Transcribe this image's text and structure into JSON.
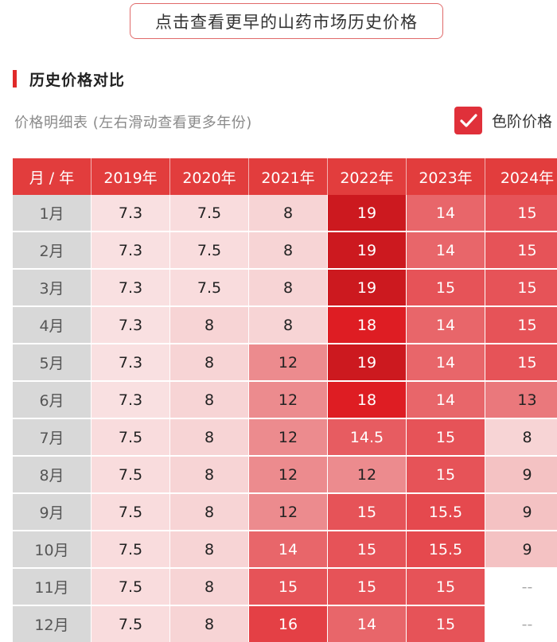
{
  "top_button": {
    "label": "点击查看更早的山药市场历史价格"
  },
  "section": {
    "title": "历史价格对比"
  },
  "table_hint": "价格明细表 (左右滑动查看更多年份)",
  "color_toggle": {
    "label": "色阶价格",
    "checked": true
  },
  "colors": {
    "accent": "#e02a2a",
    "header_bg": "#e23d3d",
    "month_bg": "#d8d8d8"
  },
  "table": {
    "columns": [
      "月 / 年",
      "2019年",
      "2020年",
      "2021年",
      "2022年",
      "2023年",
      "2024年"
    ],
    "rows": [
      {
        "month": "1月",
        "values": [
          "7.3",
          "7.5",
          "8",
          "19",
          "14",
          "15"
        ]
      },
      {
        "month": "2月",
        "values": [
          "7.3",
          "7.5",
          "8",
          "19",
          "14",
          "15"
        ]
      },
      {
        "month": "3月",
        "values": [
          "7.3",
          "7.5",
          "8",
          "19",
          "15",
          "15"
        ]
      },
      {
        "month": "4月",
        "values": [
          "7.3",
          "8",
          "8",
          "18",
          "14",
          "15"
        ]
      },
      {
        "month": "5月",
        "values": [
          "7.3",
          "8",
          "12",
          "19",
          "14",
          "15"
        ]
      },
      {
        "month": "6月",
        "values": [
          "7.3",
          "8",
          "12",
          "18",
          "14",
          "13"
        ]
      },
      {
        "month": "7月",
        "values": [
          "7.5",
          "8",
          "12",
          "14.5",
          "15",
          "8"
        ]
      },
      {
        "month": "8月",
        "values": [
          "7.5",
          "8",
          "12",
          "12",
          "15",
          "9"
        ]
      },
      {
        "month": "9月",
        "values": [
          "7.5",
          "8",
          "12",
          "15",
          "15.5",
          "9"
        ]
      },
      {
        "month": "10月",
        "values": [
          "7.5",
          "8",
          "14",
          "15",
          "15.5",
          "9"
        ]
      },
      {
        "month": "11月",
        "values": [
          "7.5",
          "8",
          "15",
          "15",
          "15",
          "--"
        ]
      },
      {
        "month": "12月",
        "values": [
          "7.5",
          "8",
          "16",
          "14",
          "15",
          "--"
        ]
      }
    ]
  }
}
